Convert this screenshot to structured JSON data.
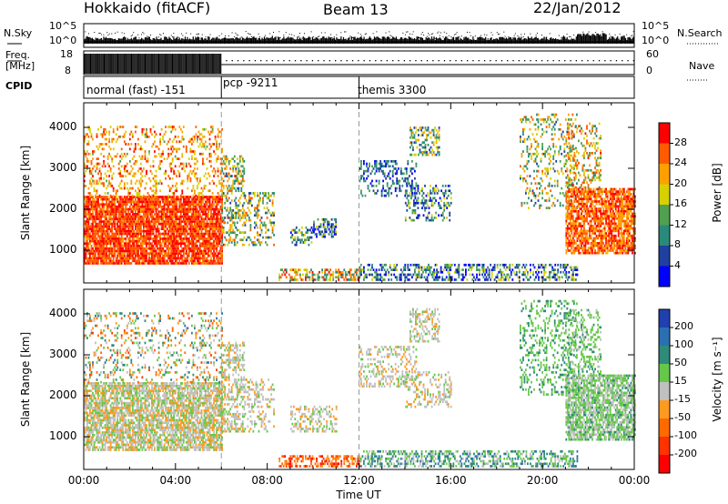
{
  "header": {
    "station": "Hokkaido (fitACF)",
    "beam": "Beam 13",
    "date": "22/Jan/2012"
  },
  "noise_panel": {
    "left_label": "N.Sky",
    "right_label": "N.Search",
    "left_ticks": [
      "10^5",
      "10^0"
    ],
    "right_ticks": [
      "10^5",
      "10^0"
    ]
  },
  "freq_panel": {
    "left_label_1": "Freq.",
    "left_label_2": "[MHz]",
    "left_ticks": [
      "18",
      "8"
    ],
    "right_label": "Nave",
    "right_ticks": [
      "60",
      "0"
    ]
  },
  "cpid_panel": {
    "label": "CPID",
    "modes": [
      {
        "name": "normal (fast) -151",
        "start_h": 0,
        "end_h": 6
      },
      {
        "name": "pcp -9211",
        "start_h": 6,
        "end_h": 12
      },
      {
        "name": "themis 3300",
        "start_h": 12,
        "end_h": 24
      }
    ]
  },
  "chart_data": [
    {
      "type": "heatmap",
      "name": "Power",
      "ylabel": "Slant Range [km]",
      "xlim": [
        0,
        24
      ],
      "ylim": [
        200,
        4600
      ],
      "y_ticks": [
        1000,
        2000,
        3000,
        4000
      ],
      "colorbar": {
        "label": "Power [dB]",
        "ticks": [
          "28",
          "24",
          "20",
          "16",
          "12",
          "8",
          "4"
        ],
        "colors": [
          "#ff0000",
          "#ff5a00",
          "#ffa000",
          "#d8d000",
          "#50a050",
          "#2a8a7a",
          "#2040a0",
          "#0000ff"
        ]
      },
      "regions": [
        {
          "t": [
            0.0,
            6.0
          ],
          "r": [
            650,
            2300
          ],
          "v": 0.85,
          "d": 0.85,
          "jit": 0.14
        },
        {
          "t": [
            0.0,
            6.0
          ],
          "r": [
            2300,
            4000
          ],
          "v": 0.7,
          "d": 0.22,
          "jit": 0.22
        },
        {
          "t": [
            6.0,
            7.0
          ],
          "r": [
            1100,
            3300
          ],
          "v": 0.5,
          "d": 0.45,
          "jit": 0.3
        },
        {
          "t": [
            7.0,
            8.3
          ],
          "r": [
            1100,
            2400
          ],
          "v": 0.5,
          "d": 0.3,
          "jit": 0.3
        },
        {
          "t": [
            9.0,
            10.0
          ],
          "r": [
            1100,
            1550
          ],
          "v": 0.35,
          "d": 0.4,
          "jit": 0.3
        },
        {
          "t": [
            10.0,
            11.0
          ],
          "r": [
            1300,
            1750
          ],
          "v": 0.3,
          "d": 0.5,
          "jit": 0.3
        },
        {
          "t": [
            8.5,
            12.0
          ],
          "r": [
            250,
            520
          ],
          "v": 0.6,
          "d": 0.5,
          "jit": 0.35
        },
        {
          "t": [
            12.0,
            14.5
          ],
          "r": [
            2300,
            3200
          ],
          "v": 0.25,
          "d": 0.3,
          "jit": 0.25
        },
        {
          "t": [
            14.0,
            16.0
          ],
          "r": [
            1700,
            2600
          ],
          "v": 0.3,
          "d": 0.3,
          "jit": 0.3
        },
        {
          "t": [
            14.2,
            15.5
          ],
          "r": [
            3300,
            4000
          ],
          "v": 0.45,
          "d": 0.4,
          "jit": 0.3
        },
        {
          "t": [
            12.0,
            21.5
          ],
          "r": [
            250,
            650
          ],
          "v": 0.3,
          "d": 0.45,
          "jit": 0.3
        },
        {
          "t": [
            19.0,
            21.5
          ],
          "r": [
            2000,
            4300
          ],
          "v": 0.5,
          "d": 0.2,
          "jit": 0.3
        },
        {
          "t": [
            21.0,
            24.0
          ],
          "r": [
            900,
            2500
          ],
          "v": 0.8,
          "d": 0.75,
          "jit": 0.18
        },
        {
          "t": [
            21.0,
            22.5
          ],
          "r": [
            2500,
            4100
          ],
          "v": 0.6,
          "d": 0.3,
          "jit": 0.3
        }
      ]
    },
    {
      "type": "heatmap",
      "name": "Velocity",
      "ylabel": "Slant Range [km]",
      "xlim": [
        0,
        24
      ],
      "ylim": [
        200,
        4600
      ],
      "y_ticks": [
        1000,
        2000,
        3000,
        4000
      ],
      "colorbar": {
        "label": "Velocity [m s⁻¹]",
        "ticks": [
          "200",
          "100",
          "50",
          "15",
          "-15",
          "-50",
          "-100",
          "-200"
        ],
        "colors": [
          "#2040b0",
          "#2a70b0",
          "#2f8a7a",
          "#66c84a",
          "#c0c0c0",
          "#ff9a20",
          "#ff6a00",
          "#ff3300",
          "#ff0000"
        ]
      },
      "regions": [
        {
          "t": [
            0.0,
            6.0
          ],
          "r": [
            650,
            2300
          ],
          "v": 0.5,
          "d": 0.75,
          "jit": 0.12
        },
        {
          "t": [
            0.0,
            6.0
          ],
          "r": [
            2300,
            4000
          ],
          "v": 0.5,
          "d": 0.18,
          "jit": 0.3
        },
        {
          "t": [
            6.0,
            7.0
          ],
          "r": [
            1100,
            3300
          ],
          "v": 0.5,
          "d": 0.4,
          "jit": 0.1
        },
        {
          "t": [
            7.0,
            8.3
          ],
          "r": [
            1100,
            2400
          ],
          "v": 0.5,
          "d": 0.3,
          "jit": 0.1
        },
        {
          "t": [
            9.0,
            11.0
          ],
          "r": [
            1100,
            1750
          ],
          "v": 0.5,
          "d": 0.4,
          "jit": 0.1
        },
        {
          "t": [
            8.5,
            12.0
          ],
          "r": [
            250,
            520
          ],
          "v": 0.75,
          "d": 0.5,
          "jit": 0.2
        },
        {
          "t": [
            12.0,
            14.5
          ],
          "r": [
            2200,
            3200
          ],
          "v": 0.5,
          "d": 0.3,
          "jit": 0.1
        },
        {
          "t": [
            14.0,
            16.0
          ],
          "r": [
            1700,
            2600
          ],
          "v": 0.5,
          "d": 0.3,
          "jit": 0.1
        },
        {
          "t": [
            14.2,
            15.5
          ],
          "r": [
            3300,
            4100
          ],
          "v": 0.5,
          "d": 0.4,
          "jit": 0.1
        },
        {
          "t": [
            12.0,
            21.5
          ],
          "r": [
            250,
            650
          ],
          "v": 0.35,
          "d": 0.45,
          "jit": 0.2
        },
        {
          "t": [
            19.0,
            21.5
          ],
          "r": [
            2000,
            4300
          ],
          "v": 0.35,
          "d": 0.25,
          "jit": 0.08
        },
        {
          "t": [
            21.0,
            24.0
          ],
          "r": [
            900,
            2500
          ],
          "v": 0.42,
          "d": 0.75,
          "jit": 0.12
        },
        {
          "t": [
            21.0,
            22.5
          ],
          "r": [
            2500,
            4100
          ],
          "v": 0.4,
          "d": 0.3,
          "jit": 0.1
        }
      ]
    }
  ],
  "x_axis": {
    "ticks": [
      "00:00",
      "04:00",
      "08:00",
      "12:00",
      "16:00",
      "20:00",
      "00:00"
    ],
    "tick_hours": [
      0,
      4,
      8,
      12,
      16,
      20,
      24
    ],
    "label": "Time UT"
  }
}
